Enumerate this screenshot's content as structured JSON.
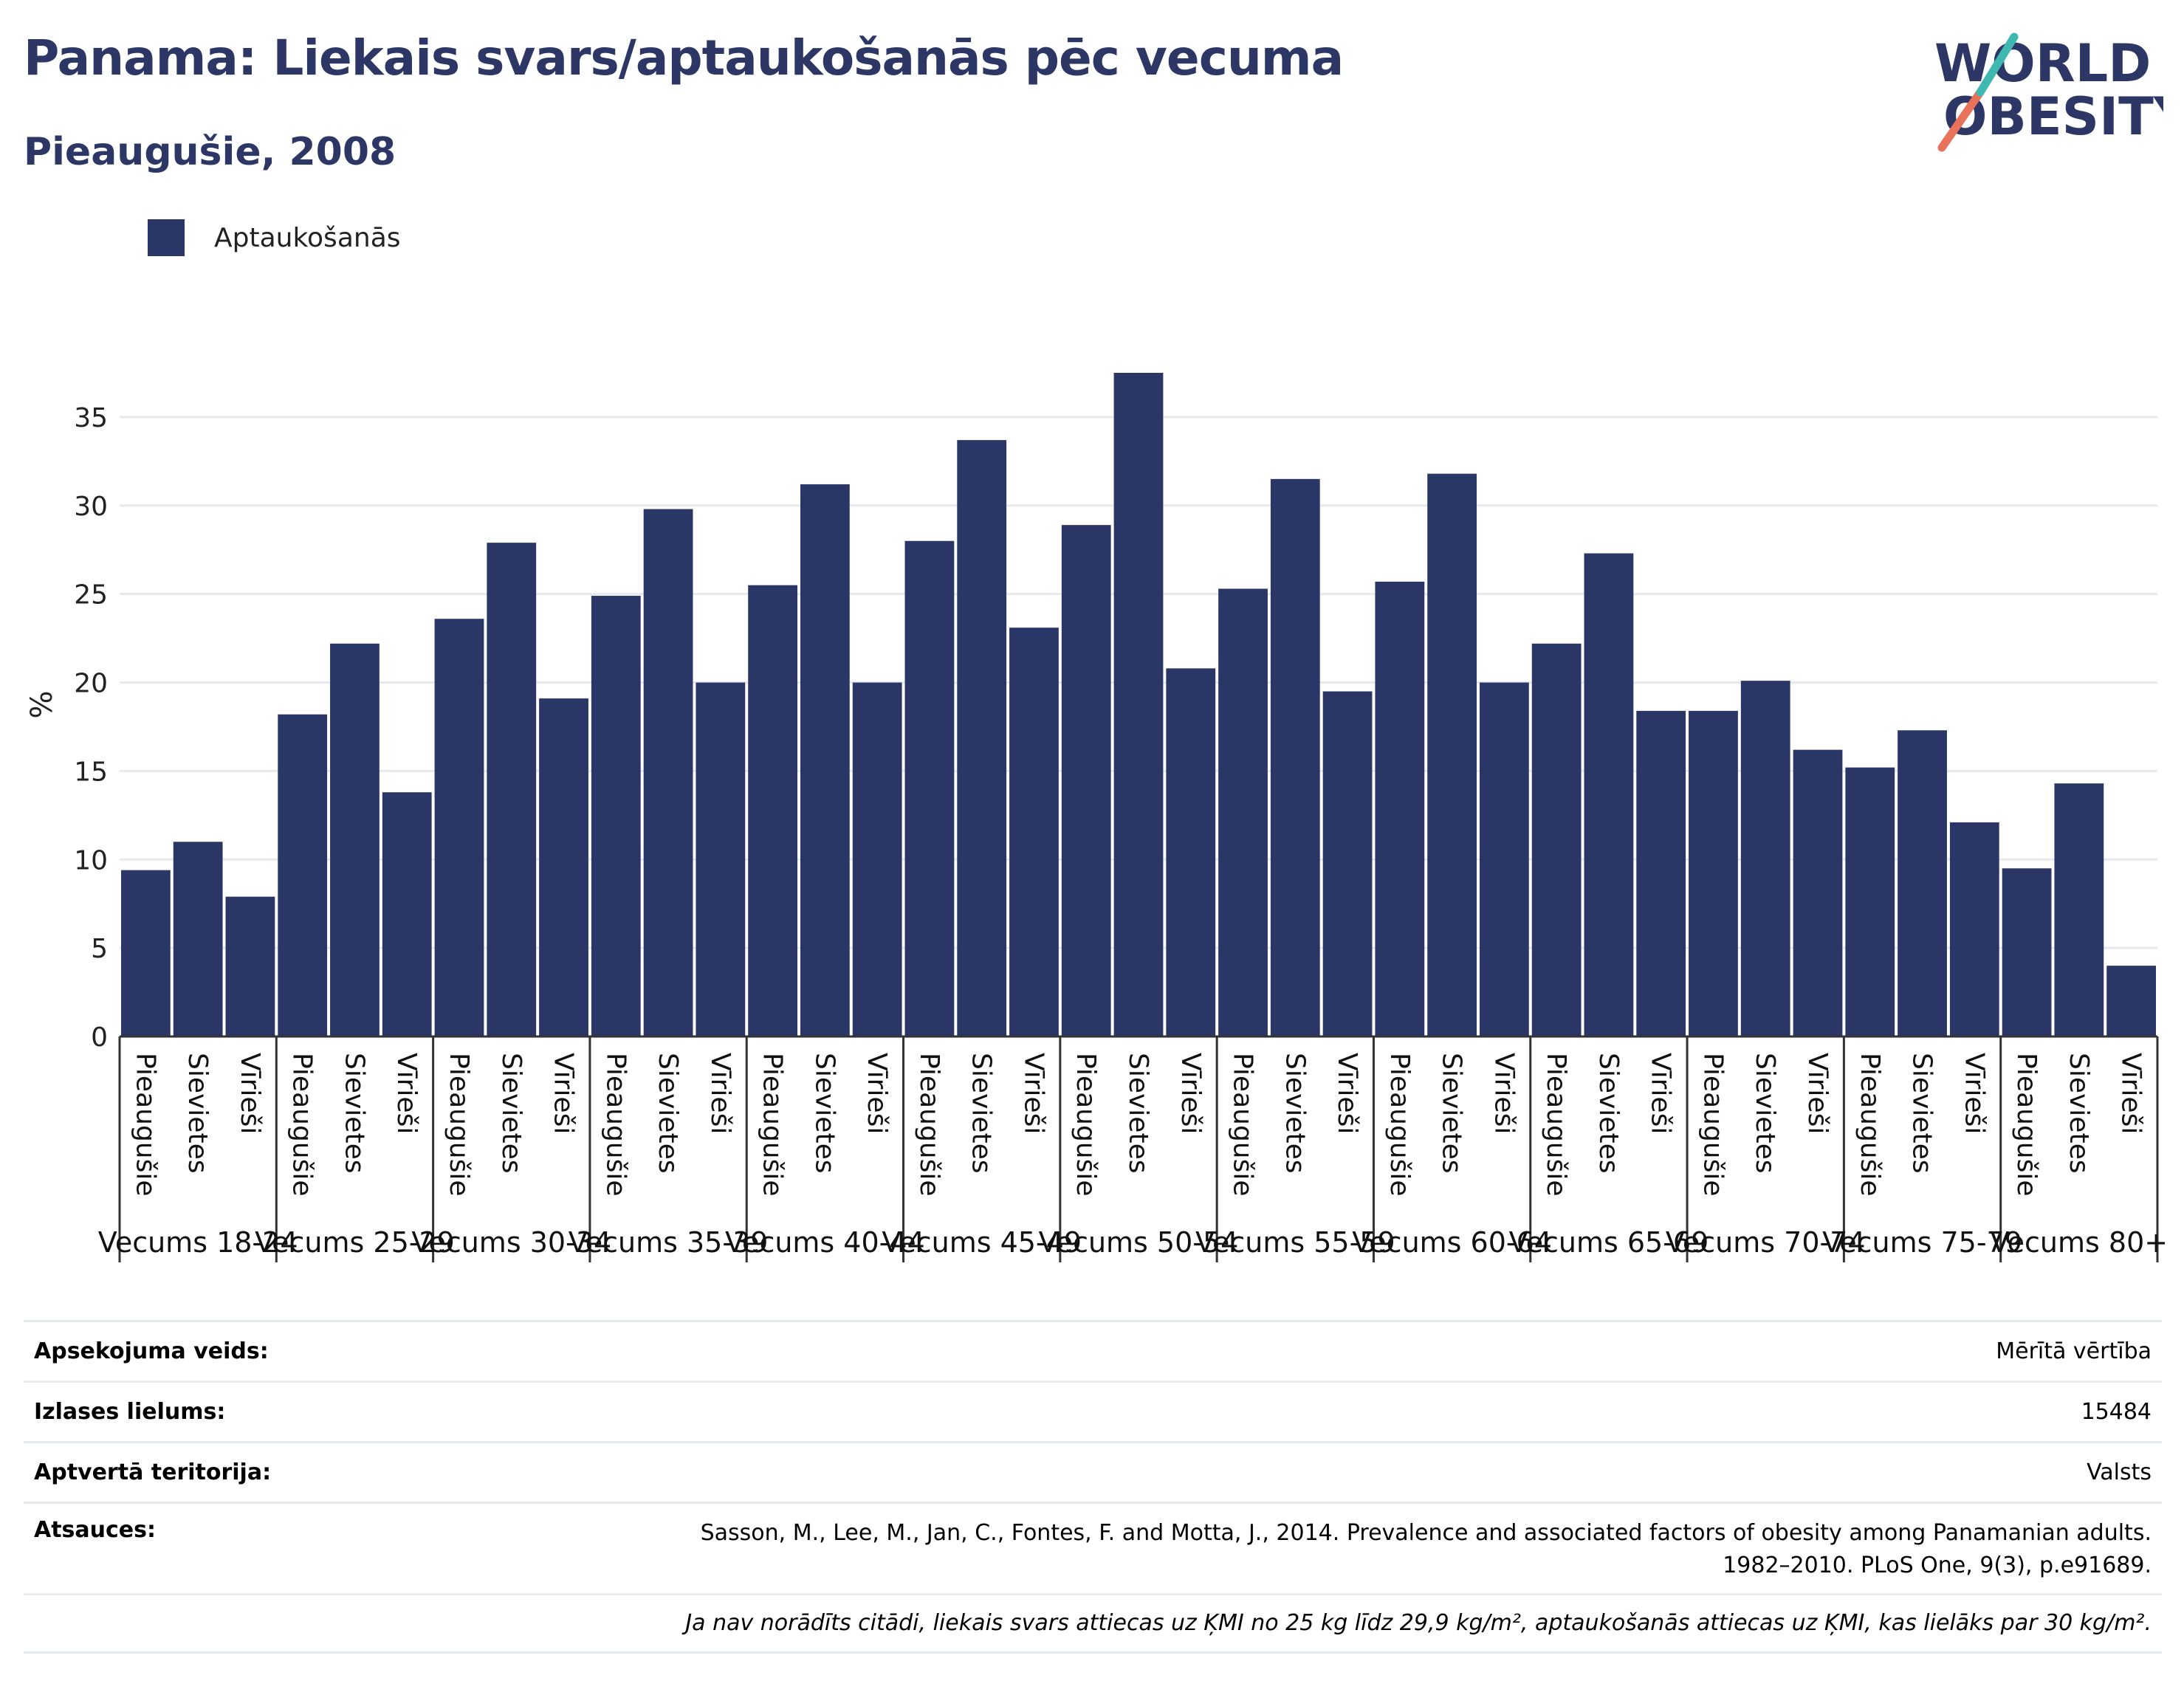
{
  "title": "Panama: Liekais svars/aptaukošanās pēc vecuma",
  "subtitle": "Pieaugušie, 2008",
  "logo": {
    "line1": "WORLD",
    "line2": "OBESITY"
  },
  "colors": {
    "bar": "#2a3665",
    "title": "#2c3766",
    "grid": "#e8e9ef",
    "logo_teal": "#3fb8b2",
    "logo_coral": "#e8735a"
  },
  "legend": {
    "label": "Aptaukošanās"
  },
  "chart_data": {
    "type": "bar",
    "ylabel": "%",
    "ylim": [
      0,
      37.5
    ],
    "yticks": [
      0,
      5,
      10,
      15,
      20,
      25,
      30,
      35
    ],
    "grid": true,
    "legend_position": "top-left",
    "series": [
      {
        "name": "Aptaukošanās"
      }
    ],
    "groups": [
      {
        "label": "Vecums 18-24",
        "categories": [
          "Pieaugušie",
          "Sievietes",
          "Vīrieši"
        ],
        "values": [
          9.4,
          11.0,
          7.9
        ]
      },
      {
        "label": "Vecums 25-29",
        "categories": [
          "Pieaugušie",
          "Sievietes",
          "Vīrieši"
        ],
        "values": [
          18.2,
          22.2,
          13.8
        ]
      },
      {
        "label": "Vecums 30-34",
        "categories": [
          "Pieaugušie",
          "Sievietes",
          "Vīrieši"
        ],
        "values": [
          23.6,
          27.9,
          19.1
        ]
      },
      {
        "label": "Vecums 35-39",
        "categories": [
          "Pieaugušie",
          "Sievietes",
          "Vīrieši"
        ],
        "values": [
          24.9,
          29.8,
          20.0
        ]
      },
      {
        "label": "Vecums 40-44",
        "categories": [
          "Pieaugušie",
          "Sievietes",
          "Vīrieši"
        ],
        "values": [
          25.5,
          31.2,
          20.0
        ]
      },
      {
        "label": "Vecums 45-49",
        "categories": [
          "Pieaugušie",
          "Sievietes",
          "Vīrieši"
        ],
        "values": [
          28.0,
          33.7,
          23.1
        ]
      },
      {
        "label": "Vecums 50-54",
        "categories": [
          "Pieaugušie",
          "Sievietes",
          "Vīrieši"
        ],
        "values": [
          28.9,
          37.5,
          20.8
        ]
      },
      {
        "label": "Vecums 55-59",
        "categories": [
          "Pieaugušie",
          "Sievietes",
          "Vīrieši"
        ],
        "values": [
          25.3,
          31.5,
          19.5
        ]
      },
      {
        "label": "Vecums 60-64",
        "categories": [
          "Pieaugušie",
          "Sievietes",
          "Vīrieši"
        ],
        "values": [
          25.7,
          31.8,
          20.0
        ]
      },
      {
        "label": "Vecums 65-69",
        "categories": [
          "Pieaugušie",
          "Sievietes",
          "Vīrieši"
        ],
        "values": [
          22.2,
          27.3,
          18.4
        ]
      },
      {
        "label": "Vecums 70-74",
        "categories": [
          "Pieaugušie",
          "Sievietes",
          "Vīrieši"
        ],
        "values": [
          18.4,
          20.1,
          16.2
        ]
      },
      {
        "label": "Vecums 75-79",
        "categories": [
          "Pieaugušie",
          "Sievietes",
          "Vīrieši"
        ],
        "values": [
          15.2,
          17.3,
          12.1
        ]
      },
      {
        "label": "Vecums 80+",
        "categories": [
          "Pieaugušie",
          "Sievietes",
          "Vīrieši"
        ],
        "values": [
          9.5,
          14.3,
          4.0
        ]
      }
    ]
  },
  "info": {
    "survey_type": {
      "label": "Apsekojuma veids:",
      "value": "Mērītā vērtība"
    },
    "sample_size": {
      "label": "Izlases lielums:",
      "value": "15484"
    },
    "coverage": {
      "label": "Aptvertā teritorija:",
      "value": "Valsts"
    },
    "references": {
      "label": "Atsauces:",
      "value_line1": "Sasson, M., Lee, M., Jan, C., Fontes, F. and Motta, J., 2014. Prevalence and associated factors of obesity among Panamanian adults.",
      "value_line2": "1982–2010. PLoS One, 9(3), p.e91689."
    },
    "note": "Ja nav norādīts citādi, liekais svars attiecas uz ĶMI no 25 kg līdz 29,9 kg/m², aptaukošanās attiecas uz ĶMI, kas lielāks par 30 kg/m²."
  }
}
